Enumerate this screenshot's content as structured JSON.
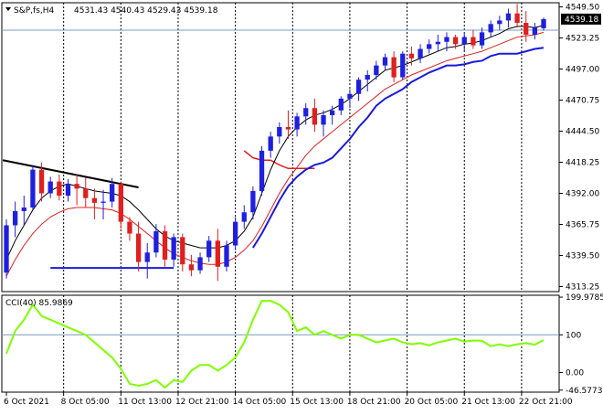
{
  "header": {
    "symbol_label": "S&P,fs,H4",
    "ohlc_label": "4531.43 4540.43 4529.43 4539.18"
  },
  "indicator": {
    "label": "CCI(40) 85.9869"
  },
  "colors": {
    "bull_candle": "#1f1fe0",
    "bear_candle": "#e01f1f",
    "ma_fast": "#000000",
    "ma_slow": "#e01f1f",
    "envelope_band": "#1a1adb",
    "upper_band": "#e01f1f",
    "trendline": "#000000",
    "cci_line": "#7fff00",
    "price_tag_bg": "#000000"
  },
  "chart_data": [
    {
      "type": "candlestick",
      "title": "S&P,fs,H4",
      "y_ticks": [
        "4549.50",
        "4539.18",
        "4523.25",
        "4497.00",
        "4470.75",
        "4444.50",
        "4418.25",
        "4392.00",
        "4365.75",
        "4339.50",
        "4313.25"
      ],
      "ylim": [
        4309,
        4553
      ],
      "x_labels": [
        "6 Oct 2021",
        "8 Oct 05:00",
        "11 Oct 13:00",
        "12 Oct 21:00",
        "14 Oct 05:00",
        "15 Oct 13:00",
        "18 Oct 21:00",
        "20 Oct 05:00",
        "21 Oct 13:00",
        "22 Oct 21:00"
      ],
      "last_price": 4539.18,
      "candles": [
        [
          4325,
          4370,
          4320,
          4365
        ],
        [
          4365,
          4385,
          4355,
          4377
        ],
        [
          4377,
          4390,
          4365,
          4380
        ],
        [
          4380,
          4416,
          4378,
          4412
        ],
        [
          4412,
          4418,
          4385,
          4392
        ],
        [
          4392,
          4406,
          4388,
          4402
        ],
        [
          4402,
          4408,
          4386,
          4390
        ],
        [
          4390,
          4404,
          4385,
          4400
        ],
        [
          4400,
          4408,
          4382,
          4396
        ],
        [
          4396,
          4405,
          4380,
          4388
        ],
        [
          4388,
          4396,
          4370,
          4384
        ],
        [
          4384,
          4395,
          4370,
          4385
        ],
        [
          4385,
          4405,
          4380,
          4400
        ],
        [
          4400,
          4402,
          4362,
          4368
        ],
        [
          4368,
          4372,
          4352,
          4358
        ],
        [
          4358,
          4368,
          4326,
          4334
        ],
        [
          4334,
          4350,
          4320,
          4342
        ],
        [
          4342,
          4366,
          4338,
          4360
        ],
        [
          4360,
          4365,
          4330,
          4336
        ],
        [
          4336,
          4358,
          4330,
          4355
        ],
        [
          4355,
          4358,
          4326,
          4332
        ],
        [
          4332,
          4340,
          4322,
          4327
        ],
        [
          4327,
          4342,
          4324,
          4338
        ],
        [
          4338,
          4356,
          4334,
          4352
        ],
        [
          4352,
          4362,
          4318,
          4330
        ],
        [
          4330,
          4352,
          4326,
          4348
        ],
        [
          4348,
          4372,
          4344,
          4368
        ],
        [
          4368,
          4382,
          4362,
          4376
        ],
        [
          4376,
          4398,
          4370,
          4394
        ],
        [
          4394,
          4432,
          4390,
          4428
        ],
        [
          4428,
          4444,
          4422,
          4440
        ],
        [
          4440,
          4452,
          4434,
          4448
        ],
        [
          4448,
          4462,
          4438,
          4446
        ],
        [
          4446,
          4460,
          4440,
          4457
        ],
        [
          4457,
          4468,
          4450,
          4464
        ],
        [
          4464,
          4472,
          4444,
          4450
        ],
        [
          4450,
          4462,
          4440,
          4458
        ],
        [
          4458,
          4466,
          4450,
          4462
        ],
        [
          4462,
          4474,
          4458,
          4472
        ],
        [
          4472,
          4480,
          4464,
          4476
        ],
        [
          4476,
          4490,
          4470,
          4488
        ],
        [
          4488,
          4496,
          4478,
          4492
        ],
        [
          4492,
          4504,
          4488,
          4500
        ],
        [
          4500,
          4510,
          4496,
          4507
        ],
        [
          4507,
          4512,
          4486,
          4490
        ],
        [
          4490,
          4512,
          4488,
          4510
        ],
        [
          4510,
          4516,
          4500,
          4506
        ],
        [
          4506,
          4518,
          4502,
          4514
        ],
        [
          4514,
          4522,
          4510,
          4518
        ],
        [
          4518,
          4526,
          4512,
          4520
        ],
        [
          4520,
          4528,
          4512,
          4524
        ],
        [
          4524,
          4526,
          4514,
          4518
        ],
        [
          4518,
          4528,
          4512,
          4524
        ],
        [
          4524,
          4530,
          4514,
          4517
        ],
        [
          4517,
          4532,
          4514,
          4528
        ],
        [
          4528,
          4538,
          4524,
          4535
        ],
        [
          4535,
          4542,
          4530,
          4538
        ],
        [
          4538,
          4548,
          4532,
          4544
        ],
        [
          4544,
          4552,
          4532,
          4536
        ],
        [
          4536,
          4546,
          4520,
          4526
        ],
        [
          4526,
          4536,
          4522,
          4532
        ],
        [
          4531.43,
          4540.43,
          4529.43,
          4539.18
        ]
      ],
      "ma_fast": [
        4336,
        4352,
        4365,
        4378,
        4388,
        4394,
        4398,
        4400,
        4398,
        4396,
        4394,
        4393,
        4392,
        4390,
        4385,
        4378,
        4370,
        4362,
        4356,
        4352,
        4350,
        4348,
        4346,
        4346,
        4346,
        4348,
        4352,
        4360,
        4372,
        4392,
        4412,
        4428,
        4440,
        4448,
        4454,
        4458,
        4460,
        4463,
        4467,
        4472,
        4478,
        4484,
        4490,
        4496,
        4498,
        4500,
        4503,
        4506,
        4509,
        4512,
        4515,
        4516,
        4518,
        4519,
        4521,
        4524,
        4527,
        4531,
        4533,
        4533,
        4532,
        4534
      ],
      "ma_slow": [
        4322,
        4336,
        4348,
        4358,
        4366,
        4372,
        4376,
        4379,
        4380,
        4380,
        4380,
        4379,
        4378,
        4375,
        4370,
        4364,
        4358,
        4352,
        4346,
        4341,
        4338,
        4335,
        4333,
        4332,
        4332,
        4334,
        4338,
        4344,
        4352,
        4364,
        4378,
        4392,
        4404,
        4414,
        4424,
        4432,
        4438,
        4444,
        4450,
        4456,
        4462,
        4468,
        4474,
        4480,
        4484,
        4488,
        4492,
        4495,
        4498,
        4501,
        4504,
        4506,
        4508,
        4510,
        4512,
        4515,
        4518,
        4521,
        4524,
        4525,
        4526,
        4528
      ],
      "envelope_lower": [
        null,
        null,
        null,
        null,
        null,
        4329,
        4329,
        4329,
        4329,
        4329,
        4329,
        4329,
        4329,
        4329,
        4329,
        4329,
        4329,
        4329,
        4329,
        4329,
        null,
        null,
        null,
        null,
        null,
        null,
        null,
        null,
        4346,
        4358,
        4372,
        4386,
        4398,
        4406,
        4412,
        4416,
        4418,
        4422,
        4430,
        4438,
        4448,
        4456,
        4466,
        4472,
        4476,
        4480,
        4486,
        4490,
        4494,
        4497,
        4500,
        4500,
        4501,
        4503,
        4504,
        4508,
        4510,
        4510,
        4510,
        4512,
        4514,
        4515
      ],
      "upper_band": [
        [
          4428,
          null
        ],
        [
          4422,
          null
        ],
        [
          4420,
          null
        ],
        [
          4420,
          null
        ],
        [
          4416,
          null
        ],
        [
          4413,
          null
        ],
        [
          4413,
          null
        ],
        [
          4413,
          null
        ],
        [
          4413,
          null
        ]
      ],
      "trendline": {
        "start": 4420,
        "end": 4397
      },
      "cci_y_ticks": [
        "199.9785",
        "100",
        "0.00",
        "-46.5773"
      ],
      "cci_ylim": [
        -52,
        205
      ],
      "cci_values": [
        50,
        110,
        140,
        180,
        150,
        140,
        130,
        120,
        110,
        100,
        80,
        60,
        40,
        10,
        -30,
        -35,
        -30,
        -20,
        -40,
        -20,
        -25,
        5,
        20,
        20,
        5,
        20,
        40,
        80,
        140,
        190,
        190,
        180,
        160,
        110,
        120,
        100,
        110,
        100,
        90,
        100,
        100,
        90,
        80,
        85,
        90,
        80,
        75,
        78,
        72,
        80,
        85,
        90,
        82,
        85,
        84,
        70,
        75,
        70,
        75,
        78,
        74,
        85.99
      ]
    }
  ]
}
